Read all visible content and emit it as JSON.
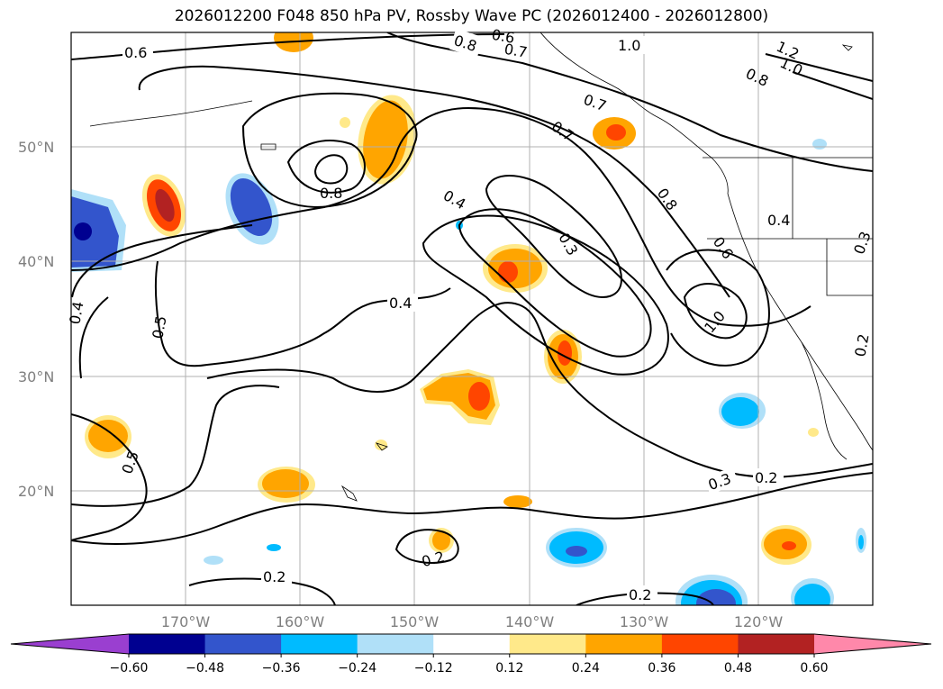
{
  "title": "2026012200 F048 850 hPa PV, Rossby Wave PC (2026012400 - 2026012800)",
  "lat_labels": [
    "50°N",
    "40°N",
    "30°N",
    "20°N"
  ],
  "lon_labels": [
    "170°W",
    "160°W",
    "150°W",
    "140°W",
    "130°W",
    "120°W"
  ],
  "colorbar": {
    "ticks": [
      "−0.60",
      "−0.48",
      "−0.36",
      "−0.24",
      "−0.12",
      "0.12",
      "0.24",
      "0.36",
      "0.48",
      "0.60"
    ],
    "colors": [
      "#9a3fd0",
      "#000090",
      "#3355cc",
      "#00bbff",
      "#b0e0f8",
      "#ffffff",
      "#ffe98a",
      "#ffa500",
      "#ff4500",
      "#b22222",
      "#ff88aa"
    ]
  },
  "contour_labels": [
    "0.6",
    "0.8",
    "0.6",
    "0.7",
    "1.0",
    "1.2",
    "1.0",
    "0.8",
    "0.7",
    "0.7",
    "0.8",
    "0.4",
    "0.4",
    "0.3",
    "0.8",
    "0.6",
    "1.0",
    "0.3",
    "0.4",
    "0.5",
    "0.5",
    "0.4",
    "0.2",
    "0.3",
    "0.2",
    "0.2",
    "0.2",
    "0.2"
  ]
}
